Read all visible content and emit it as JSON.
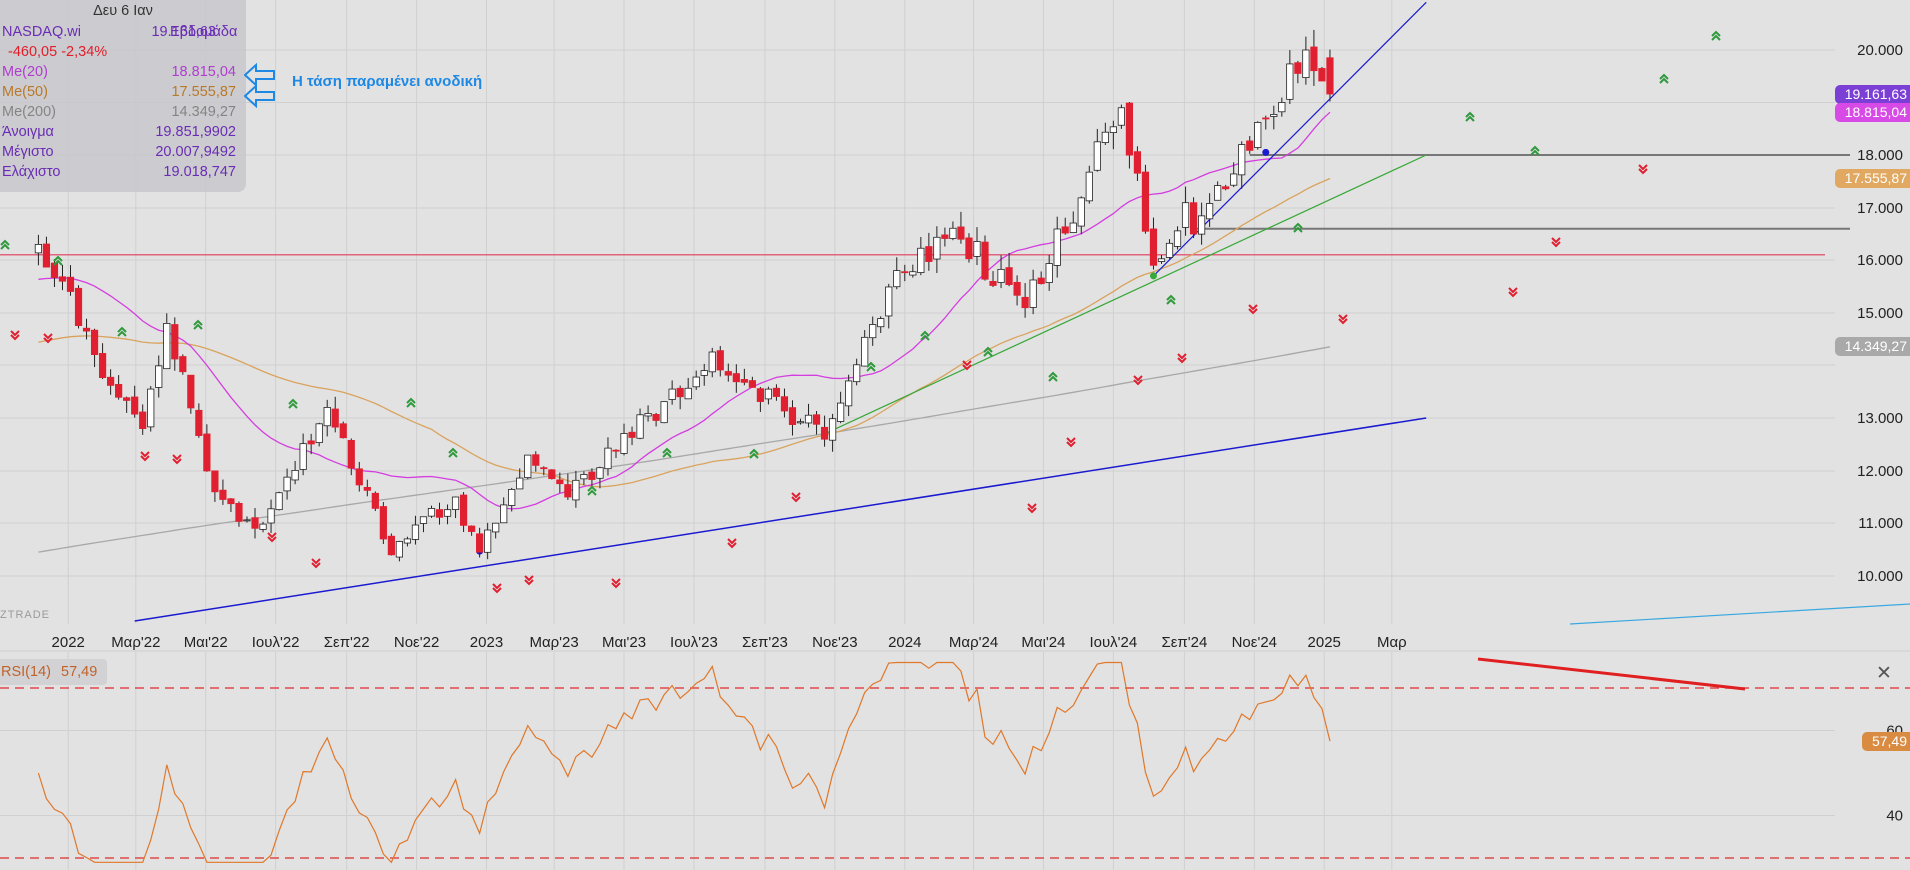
{
  "info": {
    "date": "Δευ 6 Ιαν",
    "symbol": "NASDAQ.wi",
    "last": "19.161,63",
    "period": "Εβδομάδα",
    "change": "-460,05 -2,34%",
    "rows": [
      {
        "label": "Me(20)",
        "value": "18.815,04",
        "cls": "c-ma20"
      },
      {
        "label": "Me(50)",
        "value": "17.555,87",
        "cls": "c-ma50"
      },
      {
        "label": "Me(200)",
        "value": "14.349,27",
        "cls": "c-ma200"
      },
      {
        "label": "Άνοιγμα",
        "value": "19.851,9902",
        "cls": "c-purple"
      },
      {
        "label": "Μέγιστο",
        "value": "20.007,9492",
        "cls": "c-purple"
      },
      {
        "label": "Ελάχιστο",
        "value": "19.018,747",
        "cls": "c-purple"
      }
    ]
  },
  "annotation": "Η τάση παραμένει ανοδική",
  "watermark": "ZTRADE",
  "rsi_panel": {
    "label": "RSI(14)",
    "value": "57,49",
    "close_icon": "close-icon"
  },
  "price_badges": [
    {
      "text": "19.161,63",
      "color": "#7b3fd6",
      "price": 19161.63
    },
    {
      "text": "18.815,04",
      "color": "#d84ae6",
      "price": 18815.04
    },
    {
      "text": "17.555,87",
      "color": "#e0a860",
      "price": 17555.87
    },
    {
      "text": "14.349,27",
      "color": "#a9a9a9",
      "price": 14349.27
    }
  ],
  "rsi_badge": {
    "text": "57,49",
    "color": "#d98b42"
  },
  "colors": {
    "bull": "#ffffff",
    "bear": "#e02030",
    "ma20": "#d43ee0",
    "ma50": "#d9a35e",
    "ma200": "#a8a8a8",
    "rsi": "#e0782a",
    "trend_blue": "#1a1ad0",
    "trend_green": "#38a838",
    "hline_red": "#e03a5a",
    "annotation_blue": "#1e88e5"
  },
  "chart_data": [
    {
      "type": "candlestick",
      "title": "NASDAQ.wi",
      "x_tick_labels": [
        "2022",
        "Μαρ'22",
        "Μαι'22",
        "Ιουλ'22",
        "Σεπ'22",
        "Νοε'22",
        "2023",
        "Μαρ'23",
        "Μαι'23",
        "Ιουλ'23",
        "Σεπ'23",
        "Νοε'23",
        "2024",
        "Μαρ'24",
        "Μαι'24",
        "Ιουλ'24",
        "Σεπ'24",
        "Νοε'24",
        "2025",
        "Μαρ"
      ],
      "y_tick_labels": [
        "20.000",
        "18.000",
        "17.000",
        "16.000",
        "15.000",
        "13.000",
        "12.000",
        "11.000",
        "10.000"
      ],
      "ylim": [
        9200,
        20900
      ],
      "anchors": [
        [
          "2021-12-06",
          16300
        ],
        [
          "2021-12-27",
          15600
        ],
        [
          "2022-01-24",
          14200
        ],
        [
          "2022-03-07",
          12800
        ],
        [
          "2022-03-28",
          14800
        ],
        [
          "2022-05-09",
          11600
        ],
        [
          "2022-06-13",
          10900
        ],
        [
          "2022-08-15",
          13200
        ],
        [
          "2022-10-10",
          10400
        ],
        [
          "2022-12-05",
          11500
        ],
        [
          "2022-12-26",
          10450
        ],
        [
          "2023-02-06",
          12300
        ],
        [
          "2023-03-13",
          11500
        ],
        [
          "2023-07-17",
          14250
        ],
        [
          "2023-10-23",
          12600
        ],
        [
          "2023-12-25",
          15800
        ],
        [
          "2024-02-19",
          16400
        ],
        [
          "2024-04-15",
          15100
        ],
        [
          "2024-07-08",
          18900
        ],
        [
          "2024-08-05",
          15900
        ],
        [
          "2024-09-02",
          17100
        ],
        [
          "2024-09-09",
          16500
        ],
        [
          "2024-11-11",
          18700
        ],
        [
          "2024-12-16",
          20000
        ],
        [
          "2025-01-06",
          19161.63
        ]
      ],
      "moving_averages": [
        {
          "name": "Me(20)",
          "period": 20,
          "last": 18815.04
        },
        {
          "name": "Me(50)",
          "period": 50,
          "last": 17555.87
        },
        {
          "name": "Me(200)",
          "period": 200,
          "last": 14349.27
        }
      ],
      "trendlines": [
        {
          "color": "blue",
          "from": [
            "2022-02-28",
            9100
          ],
          "to": [
            "2025-03-31",
            13000
          ]
        },
        {
          "color": "green",
          "from": [
            "2023-10-23",
            12700
          ],
          "to": [
            "2025-03-31",
            18000
          ]
        },
        {
          "color": "blue",
          "from": [
            "2024-08-05",
            15700
          ],
          "to": [
            "2025-03-31",
            20900
          ]
        }
      ],
      "horizontal_lines": [
        {
          "color": "red",
          "price": 16100
        },
        {
          "color": "gray",
          "price": 18000
        },
        {
          "color": "gray",
          "price": 16600
        }
      ]
    },
    {
      "type": "line",
      "title": "RSI(14)",
      "last": 57.49,
      "y_tick_labels": [
        "60",
        "40"
      ],
      "levels": [
        70,
        30
      ],
      "ylim": [
        29,
        76
      ]
    }
  ]
}
